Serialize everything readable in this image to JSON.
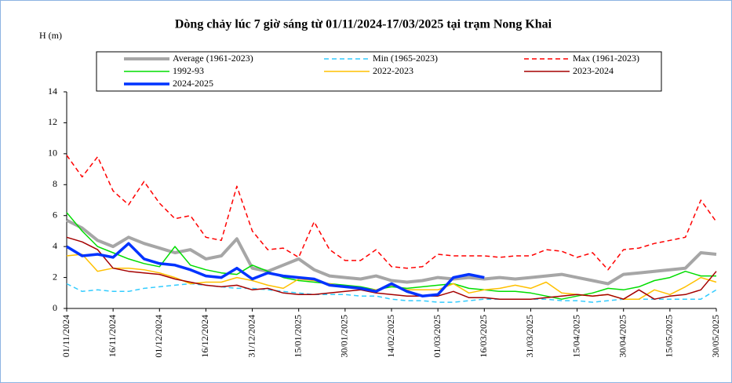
{
  "chart_data": {
    "type": "line",
    "title": "Dòng chảy lúc 7 giờ sáng từ 01/11/2024-17/03/2025 tại trạm Nong Khai",
    "y_label": "H (m)",
    "x": [
      "01/11/2024",
      "06/11/2024",
      "11/11/2024",
      "16/11/2024",
      "21/11/2024",
      "26/11/2024",
      "01/12/2024",
      "06/12/2024",
      "11/12/2024",
      "16/12/2024",
      "21/12/2024",
      "26/12/2024",
      "31/12/2024",
      "05/01/2025",
      "10/01/2025",
      "15/01/2025",
      "20/01/2025",
      "25/01/2025",
      "30/01/2025",
      "04/02/2025",
      "09/02/2025",
      "14/02/2025",
      "19/02/2025",
      "24/02/2025",
      "01/03/2025",
      "06/03/2025",
      "11/03/2025",
      "16/03/2025",
      "21/03/2025",
      "26/03/2025",
      "31/03/2025",
      "05/04/2025",
      "10/04/2025",
      "15/04/2025",
      "20/04/2025",
      "25/04/2025",
      "30/04/2025",
      "05/05/2025",
      "10/05/2025",
      "15/05/2025",
      "20/05/2025",
      "25/05/2025",
      "30/05/2025"
    ],
    "xticks": [
      "01/11/2024",
      "16/11/2024",
      "01/12/2024",
      "16/12/2024",
      "31/12/2024",
      "15/01/2025",
      "30/01/2025",
      "14/02/2025",
      "01/03/2025",
      "16/03/2025",
      "31/03/2025",
      "15/04/2025",
      "30/04/2025",
      "15/05/2025",
      "30/05/2025"
    ],
    "ylim": [
      0,
      14
    ],
    "yticks": [
      0,
      2,
      4,
      6,
      8,
      10,
      12,
      14
    ],
    "series": [
      {
        "name": "Average (1961-2023)",
        "color": "#a6a6a6",
        "width": 4,
        "dash": false,
        "values": [
          5.7,
          5.2,
          4.4,
          4.0,
          4.6,
          4.2,
          3.9,
          3.6,
          3.8,
          3.2,
          3.4,
          4.5,
          2.6,
          2.4,
          2.8,
          3.2,
          2.5,
          2.1,
          2.0,
          1.9,
          2.1,
          1.8,
          1.7,
          1.8,
          2.0,
          1.9,
          2.0,
          1.9,
          2.0,
          1.9,
          2.0,
          2.1,
          2.2,
          2.0,
          1.8,
          1.6,
          2.2,
          2.3,
          2.4,
          2.5,
          2.6,
          3.6,
          3.5
        ]
      },
      {
        "name": "Min (1965-2023)",
        "color": "#33ccff",
        "width": 1.5,
        "dash": true,
        "values": [
          1.6,
          1.1,
          1.2,
          1.1,
          1.1,
          1.3,
          1.4,
          1.5,
          1.6,
          1.5,
          1.4,
          1.3,
          1.3,
          1.2,
          1.1,
          1.0,
          0.9,
          0.9,
          0.9,
          0.8,
          0.8,
          0.6,
          0.5,
          0.5,
          0.4,
          0.4,
          0.5,
          0.6,
          0.6,
          0.6,
          0.6,
          0.6,
          0.5,
          0.5,
          0.4,
          0.5,
          0.6,
          0.6,
          0.6,
          0.6,
          0.6,
          0.6,
          1.2
        ]
      },
      {
        "name": "Max (1961-2023)",
        "color": "#ff0000",
        "width": 1.5,
        "dash": true,
        "values": [
          9.9,
          8.5,
          9.8,
          7.6,
          6.7,
          8.2,
          6.8,
          5.8,
          6.0,
          4.6,
          4.4,
          7.9,
          5.0,
          3.8,
          3.9,
          3.3,
          5.6,
          3.8,
          3.1,
          3.1,
          3.8,
          2.7,
          2.6,
          2.7,
          3.5,
          3.4,
          3.4,
          3.4,
          3.3,
          3.4,
          3.4,
          3.8,
          3.7,
          3.3,
          3.6,
          2.5,
          3.8,
          3.9,
          4.2,
          4.4,
          4.6,
          7.0,
          5.6
        ]
      },
      {
        "name": "1992-93",
        "color": "#00dd00",
        "width": 1.5,
        "dash": false,
        "values": [
          6.2,
          5.0,
          4.0,
          3.6,
          3.2,
          2.9,
          2.7,
          4.0,
          2.8,
          2.5,
          2.3,
          2.2,
          2.8,
          2.4,
          2.0,
          1.8,
          1.7,
          1.6,
          1.5,
          1.4,
          1.2,
          1.4,
          1.3,
          1.4,
          1.5,
          1.6,
          1.3,
          1.2,
          1.1,
          1.1,
          1.0,
          0.8,
          0.6,
          0.8,
          1.0,
          1.3,
          1.2,
          1.4,
          1.8,
          2.0,
          2.4,
          2.1,
          2.1
        ]
      },
      {
        "name": "2022-2023",
        "color": "#ffc000",
        "width": 1.5,
        "dash": false,
        "values": [
          3.4,
          3.5,
          2.4,
          2.6,
          2.6,
          2.5,
          2.3,
          2.0,
          1.6,
          1.7,
          1.7,
          2.0,
          1.8,
          1.5,
          1.3,
          1.9,
          1.8,
          1.6,
          1.4,
          1.3,
          1.2,
          1.5,
          1.2,
          1.2,
          1.2,
          1.6,
          1.0,
          1.2,
          1.3,
          1.5,
          1.3,
          1.7,
          1.0,
          0.9,
          0.8,
          0.9,
          0.6,
          0.6,
          1.2,
          0.9,
          1.4,
          2.0,
          1.7
        ]
      },
      {
        "name": "2023-2024",
        "color": "#a50000",
        "width": 1.5,
        "dash": false,
        "values": [
          4.6,
          4.3,
          3.8,
          2.6,
          2.4,
          2.3,
          2.2,
          1.9,
          1.7,
          1.5,
          1.4,
          1.5,
          1.2,
          1.3,
          1.0,
          0.9,
          0.9,
          1.0,
          1.1,
          1.2,
          1.0,
          0.9,
          0.8,
          0.8,
          0.8,
          1.1,
          0.7,
          0.7,
          0.6,
          0.6,
          0.6,
          0.7,
          0.8,
          0.9,
          0.8,
          0.9,
          0.6,
          1.2,
          0.6,
          0.8,
          0.9,
          1.2,
          2.4
        ]
      },
      {
        "name": "2024-2025",
        "color": "#0033ff",
        "width": 3.5,
        "dash": false,
        "values": [
          4.0,
          3.4,
          3.5,
          3.3,
          4.2,
          3.2,
          2.9,
          2.8,
          2.5,
          2.1,
          2.0,
          2.6,
          1.9,
          2.3,
          2.1,
          2.0,
          1.9,
          1.5,
          1.4,
          1.3,
          1.1,
          1.6,
          1.1,
          0.8,
          0.9,
          2.0,
          2.2,
          2.0,
          null,
          null,
          null,
          null,
          null,
          null,
          null,
          null,
          null,
          null,
          null,
          null,
          null,
          null,
          null
        ]
      }
    ]
  }
}
